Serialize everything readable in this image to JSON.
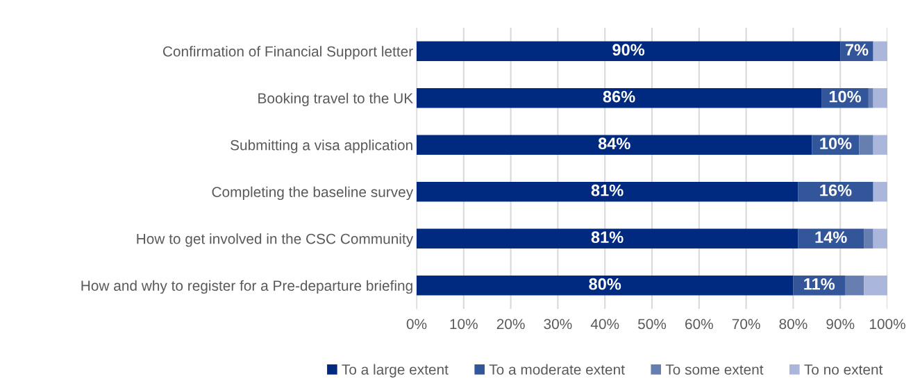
{
  "chart_data": {
    "type": "bar",
    "orientation": "horizontal",
    "stacked": true,
    "categories": [
      "Confirmation of Financial Support letter",
      "Booking travel to the UK",
      "Submitting a visa application",
      "Completing the baseline survey",
      "How to get involved in the CSC Community",
      "How and why to register for a Pre-departure briefing"
    ],
    "series": [
      {
        "name": "To a large extent",
        "color": "#002a7f",
        "values": [
          90,
          86,
          84,
          81,
          81,
          80
        ],
        "value_labels": [
          "90%",
          "86%",
          "84%",
          "81%",
          "81%",
          "80%"
        ]
      },
      {
        "name": "To a moderate extent",
        "color": "#33569b",
        "values": [
          7,
          10,
          10,
          16,
          14,
          11
        ],
        "value_labels": [
          "7%",
          "10%",
          "10%",
          "16%",
          "14%",
          "11%"
        ]
      },
      {
        "name": "To some extent",
        "color": "#667fb0",
        "values": [
          0,
          1,
          3,
          0,
          2,
          4
        ]
      },
      {
        "name": "To no extent",
        "color": "#abb6dd",
        "values": [
          3,
          3,
          3,
          3,
          3,
          5
        ]
      }
    ],
    "xlim": [
      0,
      100
    ],
    "xticks": [
      {
        "value": 0,
        "label": "0%"
      },
      {
        "value": 10,
        "label": "10%"
      },
      {
        "value": 20,
        "label": "20%"
      },
      {
        "value": 30,
        "label": "30%"
      },
      {
        "value": 40,
        "label": "40%"
      },
      {
        "value": 50,
        "label": "50%"
      },
      {
        "value": 60,
        "label": "60%"
      },
      {
        "value": 70,
        "label": "70%"
      },
      {
        "value": 80,
        "label": "80%"
      },
      {
        "value": 90,
        "label": "90%"
      },
      {
        "value": 100,
        "label": "100%"
      }
    ],
    "grid": "x",
    "legend": "bottom"
  }
}
